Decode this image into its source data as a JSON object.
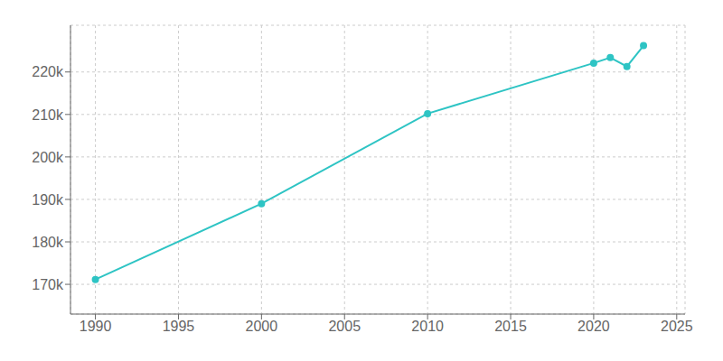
{
  "chart_data": {
    "type": "line",
    "x": [
      1990,
      2000,
      2010,
      2020,
      2021,
      2022,
      2023
    ],
    "values": [
      171138,
      189000,
      210200,
      222100,
      223400,
      221300,
      226200
    ],
    "color": "#2EC4C4",
    "marker": "circle",
    "xlim": [
      1988.5,
      2025.5
    ],
    "ylim": [
      163000,
      231000
    ],
    "xticks": [
      1990,
      1995,
      2000,
      2005,
      2010,
      2015,
      2020,
      2025
    ],
    "yticks": [
      {
        "value": 170000,
        "label": "170k"
      },
      {
        "value": 180000,
        "label": "180k"
      },
      {
        "value": 190000,
        "label": "190k"
      },
      {
        "value": 200000,
        "label": "200k"
      },
      {
        "value": 210000,
        "label": "210k"
      },
      {
        "value": 220000,
        "label": "220k"
      }
    ],
    "grid": true
  }
}
